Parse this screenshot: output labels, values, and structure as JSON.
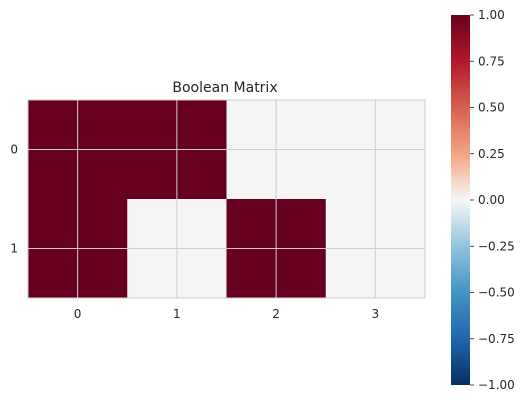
{
  "chart_data": {
    "type": "heatmap",
    "title": "Boolean Matrix",
    "xlabel": "",
    "ylabel": "",
    "x_ticks": [
      "0",
      "1",
      "2",
      "3"
    ],
    "y_ticks": [
      "0",
      "1"
    ],
    "values": [
      [
        1,
        1,
        1,
        1,
        0,
        0,
        0,
        0
      ],
      [
        1,
        1,
        1,
        1,
        0,
        0,
        0,
        0
      ],
      [
        1,
        1,
        0,
        0,
        1,
        1,
        0,
        0
      ],
      [
        1,
        1,
        0,
        0,
        1,
        1,
        0,
        0
      ]
    ],
    "vmin": -1,
    "vmax": 1,
    "colormap": "RdBu_r",
    "grid": true,
    "colorbar": {
      "ticks": [
        "1.00",
        "0.75",
        "0.50",
        "0.25",
        "0.00",
        "−0.25",
        "−0.50",
        "−0.75",
        "−1.00"
      ],
      "tick_values": [
        1.0,
        0.75,
        0.5,
        0.25,
        0.0,
        -0.25,
        -0.5,
        -0.75,
        -1.0
      ]
    }
  },
  "colors": {
    "positive": "#67001f",
    "neutral": "#f5f5f5",
    "grid": "#cccccc"
  }
}
